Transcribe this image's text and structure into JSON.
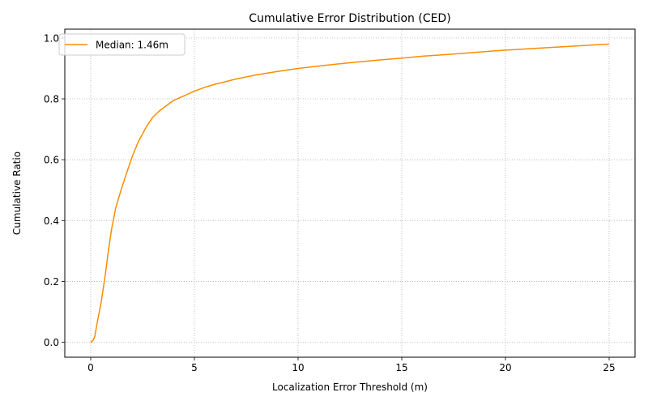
{
  "chart_data": {
    "type": "line",
    "title": "Cumulative Error Distribution (CED)",
    "xlabel": "Localization Error Threshold (m)",
    "ylabel": "Cumulative Ratio",
    "xlim": [
      -1.25,
      26.25
    ],
    "ylim": [
      -0.049,
      1.029
    ],
    "xticks": [
      0,
      5,
      10,
      15,
      20,
      25
    ],
    "yticks": [
      0.0,
      0.2,
      0.4,
      0.6,
      0.8,
      1.0
    ],
    "xtick_labels": [
      "0",
      "5",
      "10",
      "15",
      "20",
      "25"
    ],
    "ytick_labels": [
      "0.0",
      "0.2",
      "0.4",
      "0.6",
      "0.8",
      "1.0"
    ],
    "grid": true,
    "legend_position": "upper-left",
    "series": [
      {
        "name": "Median: 1.46m",
        "color": "#ff8c00",
        "x": [
          0,
          0.1,
          0.2,
          0.3,
          0.5,
          0.7,
          0.85,
          1.0,
          1.2,
          1.46,
          1.7,
          2.0,
          2.3,
          2.7,
          3.0,
          3.3,
          3.7,
          4.0,
          4.5,
          5.0,
          5.5,
          6.0,
          7.0,
          8.0,
          9.0,
          10.0,
          11.0,
          12.0,
          13.0,
          14.0,
          15.0,
          16.0,
          17.0,
          18.0,
          19.0,
          20.0,
          21.0,
          22.0,
          23.0,
          24.0,
          25.0
        ],
        "y": [
          0.0,
          0.005,
          0.02,
          0.06,
          0.13,
          0.22,
          0.3,
          0.37,
          0.44,
          0.5,
          0.55,
          0.61,
          0.66,
          0.71,
          0.74,
          0.76,
          0.78,
          0.795,
          0.81,
          0.825,
          0.838,
          0.848,
          0.865,
          0.879,
          0.89,
          0.9,
          0.908,
          0.915,
          0.922,
          0.928,
          0.934,
          0.94,
          0.945,
          0.95,
          0.955,
          0.96,
          0.964,
          0.968,
          0.972,
          0.976,
          0.98
        ]
      }
    ]
  }
}
